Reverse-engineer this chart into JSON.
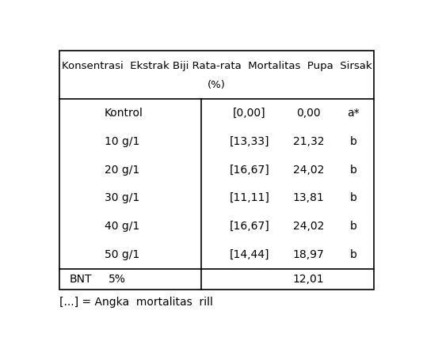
{
  "title_line1": "Konsentrasi  Ekstrak Biji Rata-rata  Mortalitas  Pupa  Sirsak",
  "title_line2": "(%)",
  "rows": [
    {
      "konsentrasi": "Kontrol",
      "angka": "[0,00]",
      "nilai": "0,00",
      "notasi": "a*"
    },
    {
      "konsentrasi": "10 g/1",
      "angka": "[13,33]",
      "nilai": "21,32",
      "notasi": "b"
    },
    {
      "konsentrasi": "20 g/1",
      "angka": "[16,67]",
      "nilai": "24,02",
      "notasi": "b"
    },
    {
      "konsentrasi": "30 g/1",
      "angka": "[11,11]",
      "nilai": "13,81",
      "notasi": "b"
    },
    {
      "konsentrasi": "40 g/1",
      "angka": "[16,67]",
      "nilai": "24,02",
      "notasi": "b"
    },
    {
      "konsentrasi": "50 g/1",
      "angka": "[14,44]",
      "nilai": "18,97",
      "notasi": "b"
    }
  ],
  "bnt_label1": "BNT",
  "bnt_label2": "5%",
  "bnt_nilai": "12,01",
  "footnote": "[...] = Angka  mortalitas  rill",
  "bg_color": "#ffffff",
  "text_color": "#000000",
  "border_color": "#000000",
  "font_size_title": 9.5,
  "font_size_body": 10,
  "font_size_footnote": 10
}
